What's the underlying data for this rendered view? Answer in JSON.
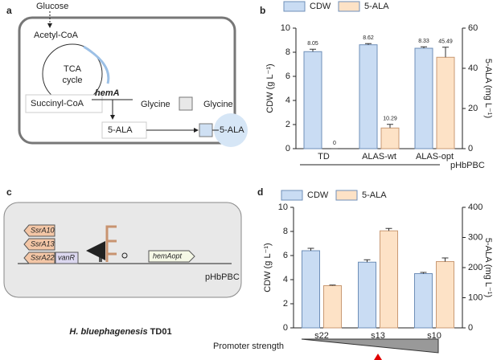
{
  "diagram_a": {
    "panel_label": "a",
    "glucose": "Glucose",
    "acetyl_coa": "Acetyl-CoA",
    "tca": [
      "TCA",
      "cycle"
    ],
    "succinyl_coa": "Succinyl-CoA",
    "gene": "hemA",
    "glycine_in": "Glycine",
    "glycine_out": "Glycine",
    "ala_in": "5-ALA",
    "ala_out": "5-ALA"
  },
  "diagram_c": {
    "panel_label": "c",
    "genes": [
      "SsrA10",
      "SsrA13",
      "SsrA22"
    ],
    "regulator": "vanR",
    "target": "hemAopt",
    "plasmid": "pHbPBC",
    "organism": "H. bluephagenesis",
    "strain": " TD01"
  },
  "chart_data": [
    {
      "type": "bar",
      "panel_label": "b",
      "categories": [
        "TD",
        "ALAS-wt",
        "ALAS-opt"
      ],
      "group_label": "pHbPBC",
      "y_label": "CDW (g L⁻¹)",
      "y2_label": "5-ALA (mg L⁻¹)",
      "ylim": [
        0,
        10
      ],
      "yticks": [
        0,
        2,
        4,
        6,
        8,
        10
      ],
      "y2lim": [
        0,
        60
      ],
      "y2ticks": [
        0,
        20,
        40,
        60
      ],
      "show_value_labels": true,
      "series": [
        {
          "name": "CDW",
          "color": "#c9dcf3",
          "values": [
            8.05,
            8.62,
            8.33
          ],
          "errors": [
            0.2,
            0.1,
            0.12
          ]
        },
        {
          "name": "5-ALA",
          "color": "#fde2c6",
          "axis": "y2",
          "values": [
            0,
            10.29,
            45.49
          ],
          "errors": [
            0,
            1.8,
            5
          ]
        }
      ]
    },
    {
      "type": "bar",
      "panel_label": "d",
      "categories": [
        "s22",
        "s13",
        "s10"
      ],
      "footer_label": "Promoter strength",
      "y_label": "CDW (g L⁻¹)",
      "y2_label": "5-ALA (mg L⁻¹)",
      "ylim": [
        0,
        10
      ],
      "yticks": [
        0,
        2,
        4,
        6,
        8,
        10
      ],
      "y2lim": [
        0,
        400
      ],
      "y2ticks": [
        0,
        100,
        200,
        300,
        400
      ],
      "show_value_labels": false,
      "series": [
        {
          "name": "CDW",
          "color": "#c9dcf3",
          "values": [
            6.4,
            5.45,
            4.5
          ],
          "errors": [
            0.2,
            0.2,
            0.1
          ]
        },
        {
          "name": "5-ALA",
          "color": "#fde2c6",
          "axis": "y2",
          "values": [
            140,
            322,
            220
          ],
          "errors": [
            2,
            8,
            12
          ]
        }
      ]
    }
  ]
}
